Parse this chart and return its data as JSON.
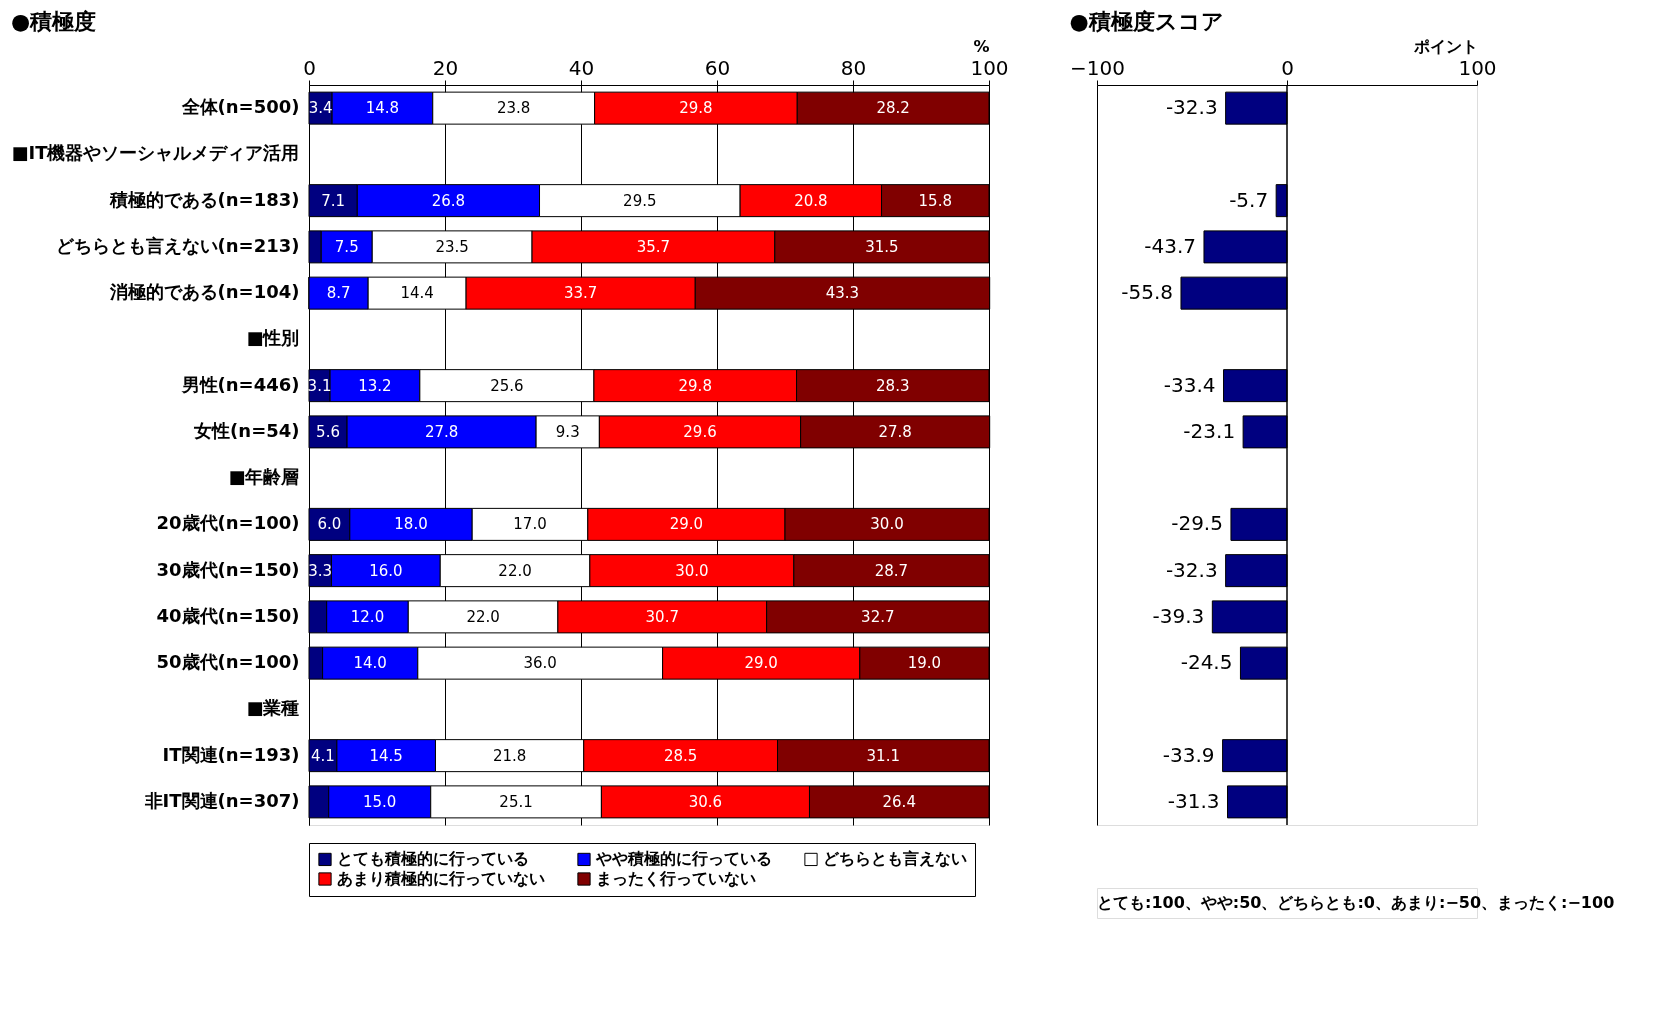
{
  "chart_data": [
    {
      "type": "bar",
      "orientation": "horizontal",
      "stacked": true,
      "title": "●積極度",
      "xlabel": "%",
      "xlim": [
        0,
        100
      ],
      "xticks": [
        0,
        20,
        40,
        60,
        80,
        100
      ],
      "grid": "x",
      "legend": "bottom",
      "categories": [
        "全体(n=500)",
        "■IT機器やソーシャルメディア活用",
        "積極的である(n=183)",
        "どちらとも言えない(n=213)",
        "消極的である(n=104)",
        "■性別",
        "男性(n=446)",
        "女性(n=54)",
        "■年齢層",
        "20歳代(n=100)",
        "30歳代(n=150)",
        "40歳代(n=150)",
        "50歳代(n=100)",
        "■業種",
        "IT関連(n=193)",
        "非IT関連(n=307)"
      ],
      "series": [
        {
          "name": "とても積極的に行っている",
          "color": "#000080",
          "values": [
            3.4,
            null,
            7.1,
            1.8,
            0,
            null,
            3.1,
            5.6,
            null,
            6.0,
            3.3,
            2.6,
            2.0,
            null,
            4.1,
            2.9
          ],
          "value_labels": [
            "3.4",
            null,
            "7.1",
            null,
            null,
            null,
            "3.1",
            "5.6",
            null,
            "6.0",
            "3.3",
            null,
            null,
            null,
            "4.1",
            null
          ]
        },
        {
          "name": "やや積極的に行っている",
          "color": "#0000ff",
          "values": [
            14.8,
            null,
            26.8,
            7.5,
            8.7,
            null,
            13.2,
            27.8,
            null,
            18.0,
            16.0,
            12.0,
            14.0,
            null,
            14.5,
            15.0
          ],
          "value_labels": [
            "14.8",
            null,
            "26.8",
            "7.5",
            "8.7",
            null,
            "13.2",
            "27.8",
            null,
            "18.0",
            "16.0",
            "12.0",
            "14.0",
            null,
            "14.5",
            "15.0"
          ]
        },
        {
          "name": "どちらとも言えない",
          "color": "#ffffff",
          "values": [
            23.8,
            null,
            29.5,
            23.5,
            14.4,
            null,
            25.6,
            9.3,
            null,
            17.0,
            22.0,
            22.0,
            36.0,
            null,
            21.8,
            25.1
          ],
          "value_labels": [
            "23.8",
            null,
            "29.5",
            "23.5",
            "14.4",
            null,
            "25.6",
            "9.3",
            null,
            "17.0",
            "22.0",
            "22.0",
            "36.0",
            null,
            "21.8",
            "25.1"
          ]
        },
        {
          "name": "あまり積極的に行っていない",
          "color": "#ff0000",
          "values": [
            29.8,
            null,
            20.8,
            35.7,
            33.7,
            null,
            29.8,
            29.6,
            null,
            29.0,
            30.0,
            30.7,
            29.0,
            null,
            28.5,
            30.6
          ],
          "value_labels": [
            "29.8",
            null,
            "20.8",
            "35.7",
            "33.7",
            null,
            "29.8",
            "29.6",
            null,
            "29.0",
            "30.0",
            "30.7",
            "29.0",
            null,
            "28.5",
            "30.6"
          ]
        },
        {
          "name": "まったく行っていない",
          "color": "#800000",
          "values": [
            28.2,
            null,
            15.8,
            31.5,
            43.3,
            null,
            28.3,
            27.8,
            null,
            30.0,
            28.7,
            32.7,
            19.0,
            null,
            31.1,
            26.4
          ],
          "value_labels": [
            "28.2",
            null,
            "15.8",
            "31.5",
            "43.3",
            null,
            "28.3",
            "27.8",
            null,
            "30.0",
            "28.7",
            "32.7",
            "19.0",
            null,
            "31.1",
            "26.4"
          ]
        }
      ]
    },
    {
      "type": "bar",
      "orientation": "horizontal",
      "title": "●積極度スコア",
      "xlabel": "ポイント",
      "xlim": [
        -100,
        100
      ],
      "xticks": [
        -100,
        0,
        100
      ],
      "grid": false,
      "legend": false,
      "data_labels": true,
      "categories": [
        null,
        null,
        null,
        null,
        null,
        null,
        null,
        null,
        null,
        null,
        null,
        null,
        null,
        null,
        null,
        null
      ],
      "series": [
        {
          "color": "#000080",
          "values": [
            -32.3,
            null,
            -5.7,
            -43.7,
            -55.8,
            null,
            -33.4,
            -23.1,
            null,
            -29.5,
            -32.3,
            -39.3,
            -24.5,
            null,
            -33.9,
            -31.3
          ]
        }
      ],
      "ref_lines": [
        {
          "axis": "x",
          "value": 0
        }
      ],
      "annotations": [
        "とても:100、やや:50、どちらとも:0、あまり:−50、まったく:−100"
      ]
    }
  ]
}
